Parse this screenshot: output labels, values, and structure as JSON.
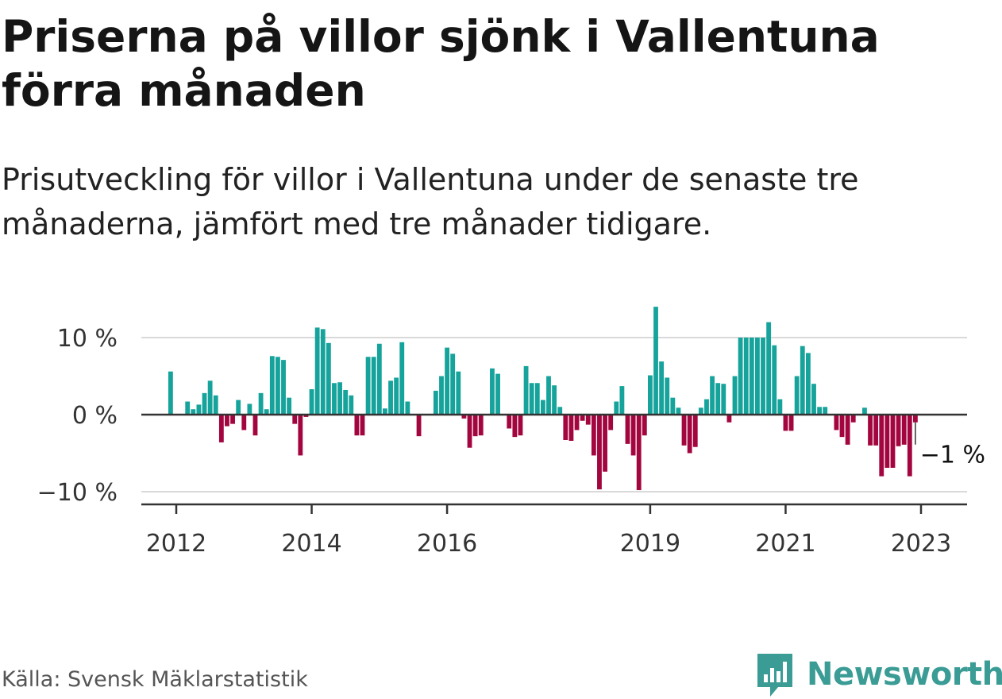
{
  "header": {
    "title": "Priserna på villor sjönk i Vallentuna förra månaden",
    "subtitle": "Prisutveckling för villor i Vallentuna under de senaste tre månaderna, jämfört med tre månader tidigare."
  },
  "footer": {
    "source": "Källa: Svensk Mäklarstatistik",
    "brand": "Newsworthy"
  },
  "colors": {
    "positive": "#16a39b",
    "negative": "#a3063f",
    "grid": "#d9d9d9",
    "axis": "#333333",
    "brand": "#3a9c95"
  },
  "chart_data": {
    "type": "bar",
    "title": "Priserna på villor sjönk i Vallentuna förra månaden",
    "subtitle": "Prisutveckling för villor i Vallentuna under de senaste tre månaderna, jämfört med tre månader tidigare.",
    "xlabel": "",
    "ylabel": "",
    "unit": "%",
    "ylim": [
      -11,
      12
    ],
    "y_ticks": [
      {
        "value": 10,
        "label": "10 %"
      },
      {
        "value": 0,
        "label": "0 %"
      },
      {
        "value": -10,
        "label": "−10 %"
      }
    ],
    "x_ticks": [
      {
        "date": "2012-01",
        "label": "2012"
      },
      {
        "date": "2014-01",
        "label": "2014"
      },
      {
        "date": "2016-01",
        "label": "2016"
      },
      {
        "date": "2019-01",
        "label": "2019"
      },
      {
        "date": "2021-01",
        "label": "2021"
      },
      {
        "date": "2023-01",
        "label": "2023"
      }
    ],
    "grid": true,
    "start_month": "2011-06",
    "values": [
      null,
      null,
      null,
      null,
      null,
      null,
      5.6,
      0,
      0,
      1.7,
      0.7,
      1.3,
      2.8,
      4.4,
      2.5,
      -3.6,
      -1.5,
      -1.2,
      1.9,
      -2.0,
      1.4,
      -2.7,
      2.8,
      0.7,
      7.6,
      7.5,
      7.1,
      2.2,
      -1.2,
      -5.3,
      -0.3,
      3.3,
      11.3,
      11.1,
      9.3,
      4.1,
      4.2,
      3.2,
      2.5,
      -2.7,
      -2.7,
      7.5,
      7.5,
      9.2,
      0.8,
      4.4,
      4.8,
      9.4,
      1.7,
      0,
      -2.8,
      0,
      0,
      3.1,
      5.0,
      8.7,
      7.9,
      5.6,
      -0.5,
      -4.3,
      -2.8,
      -2.7,
      0,
      6.0,
      5.3,
      0,
      -1.8,
      -2.9,
      -2.7,
      6.3,
      4.1,
      4.1,
      1.9,
      5.0,
      3.8,
      1.0,
      -3.3,
      -3.4,
      -2.0,
      -0.8,
      -1.3,
      -5.3,
      -9.7,
      -7.4,
      -2.0,
      1.7,
      3.7,
      -3.8,
      -5.3,
      -9.8,
      -2.7,
      5.1,
      14.0,
      6.9,
      4.8,
      2.2,
      0.9,
      -4.0,
      -5.0,
      -4.2,
      0.9,
      2.0,
      5.0,
      4.1,
      4.0,
      -1.0,
      5.0,
      10.0,
      10.0,
      10.0,
      10.0,
      10.0,
      12.0,
      9.0,
      2.0,
      -2.1,
      -2.1,
      5.0,
      8.9,
      8.0,
      4.0,
      1.0,
      1.0,
      0,
      -2.0,
      -2.9,
      -3.9,
      -1.0,
      0,
      0.9,
      -4.0,
      -4.0,
      -8.0,
      -6.9,
      -6.9,
      -4.1,
      -3.9,
      -8.0,
      -1.0,
      null,
      null,
      null,
      null,
      null,
      null
    ],
    "last_value_label": "−1 %"
  }
}
